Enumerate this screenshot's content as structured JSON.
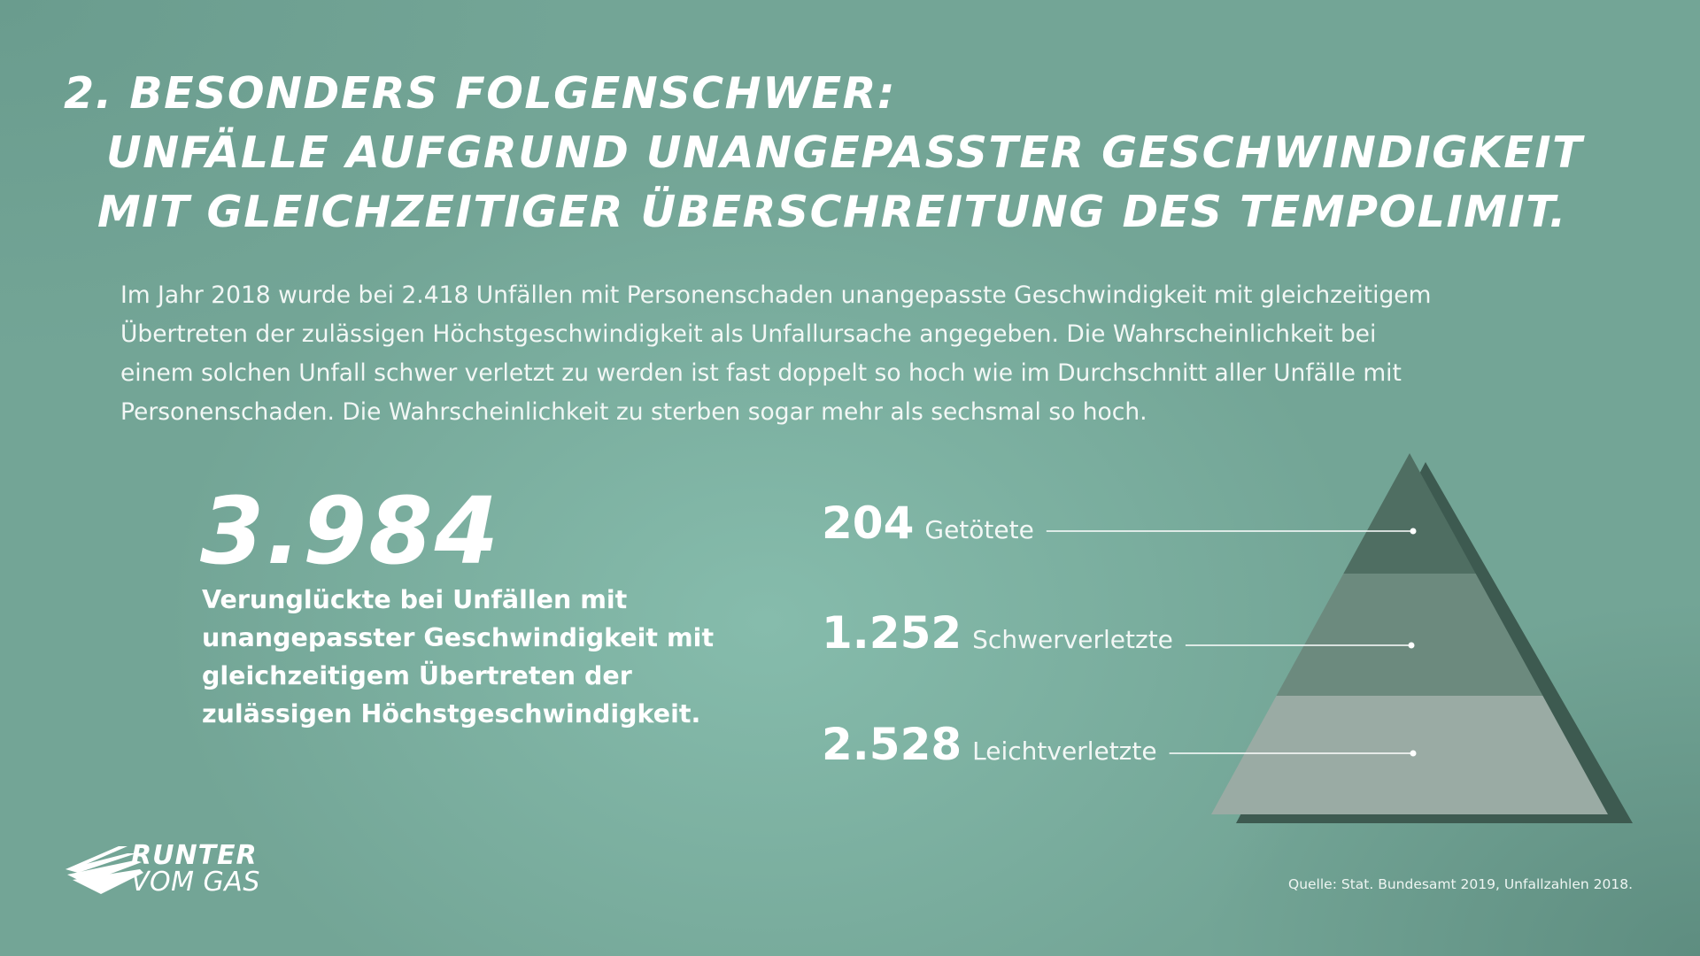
{
  "headline": {
    "line1": "2. BESONDERS FOLGENSCHWER:",
    "line2": "UNFÄLLE AUFGRUND UNANGEPASSTER GESCHWINDIGKEIT",
    "line3": "MIT GLEICHZEITIGER ÜBERSCHREITUNG DES TEMPOLIMIT."
  },
  "intro": {
    "line1": "Im Jahr 2018 wurde bei 2.418 Unfällen mit Personenschaden unangepasste Geschwindigkeit mit gleichzeitigem",
    "line2": "Übertreten der zulässigen Höchstgeschwindigkeit als Unfallursache angegeben. Die Wahrscheinlichkeit bei",
    "line3": "einem solchen Unfall schwer verletzt zu werden ist fast doppelt so hoch wie im Durchschnitt aller Unfälle mit",
    "line4": "Personenschaden. Die Wahrscheinlichkeit zu sterben sogar mehr als sechsmal so hoch."
  },
  "total": {
    "value": "3.984",
    "desc_line1": "Verunglückte bei Unfällen mit",
    "desc_line2": "unangepasster Geschwindigkeit mit",
    "desc_line3": "gleichzeitigem Übertreten der",
    "desc_line4": "zulässigen Höchstgeschwindigkeit."
  },
  "chart_data": {
    "type": "pyramid",
    "categories": [
      "Getötete",
      "Schwerverletzte",
      "Leichtverletzte"
    ],
    "values": [
      204,
      1252,
      2528
    ],
    "value_labels": [
      "204",
      "1.252",
      "2.528"
    ],
    "colors": [
      "#4f6e62",
      "#6c8a7e",
      "#9aaba4"
    ]
  },
  "source": "Quelle: Stat. Bundesamt 2019, Unfallzahlen 2018.",
  "logo": {
    "line1": "RUNTER",
    "line2": "VOM GAS"
  }
}
